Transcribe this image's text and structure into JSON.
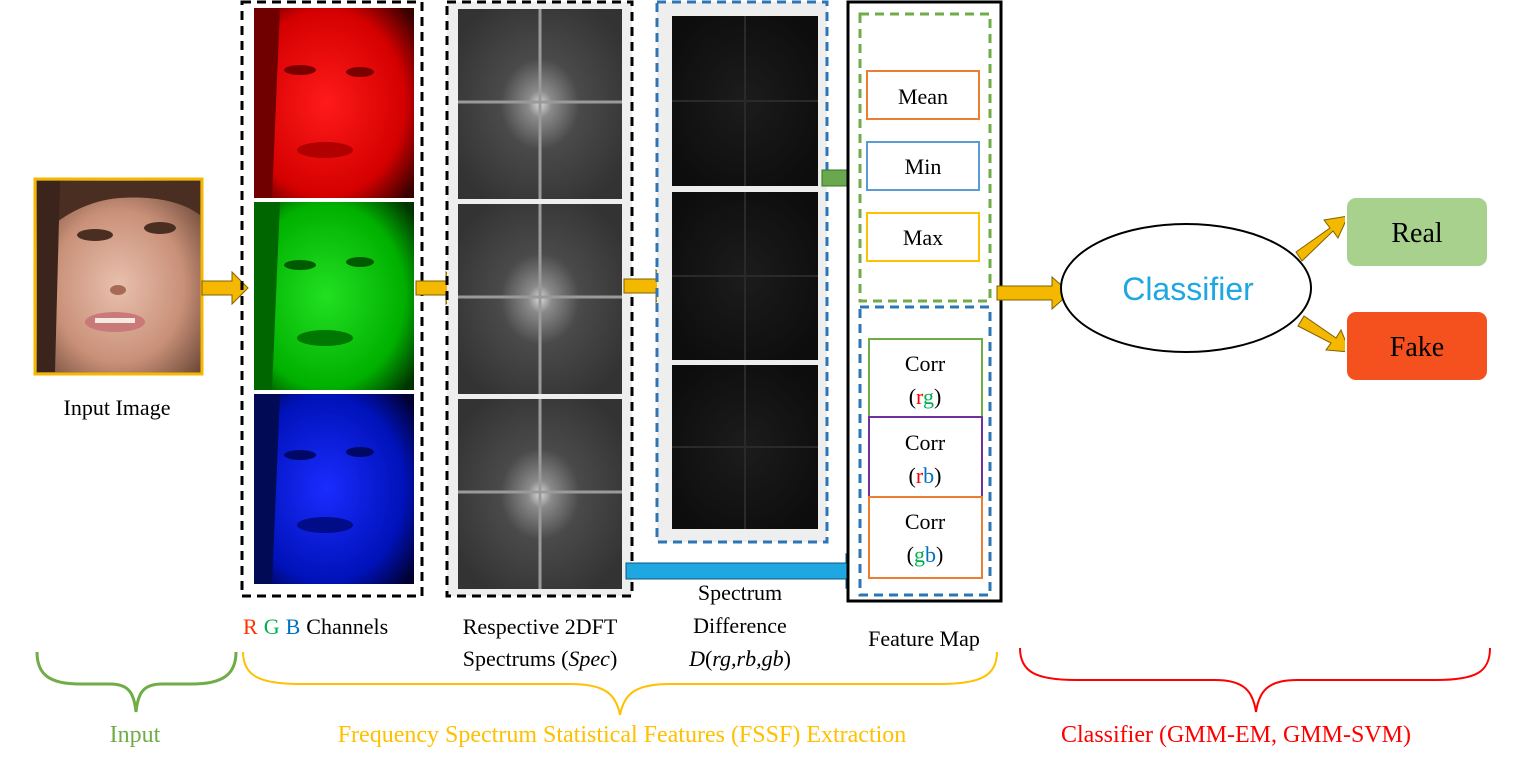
{
  "input": {
    "caption": "Input Image",
    "section_label": "Input"
  },
  "channels": {
    "caption_r": "R",
    "caption_g": "G",
    "caption_b": "B",
    "caption_rest": "Channels"
  },
  "spectrums": {
    "caption_line1": "Respective 2DFT",
    "caption_line2_a": "Spectrums (",
    "caption_line2_b": "Spec",
    "caption_line2_c": ")"
  },
  "difference": {
    "caption_line1": "Spectrum",
    "caption_line2": "Difference",
    "caption_line3_a": "D",
    "caption_line3_b": "(",
    "caption_line3_c": "rg,rb,gb",
    "caption_line3_d": ")"
  },
  "feature_map": {
    "caption": "Feature Map",
    "stats": [
      "Mean",
      "Min",
      "Max"
    ],
    "corr_label": "Corr",
    "corr_pairs": [
      {
        "open": "(",
        "a": "r",
        "b": "g",
        "close": ")"
      },
      {
        "open": "(",
        "a": "r",
        "b": "b",
        "close": ")"
      },
      {
        "open": "(",
        "a": "g",
        "b": "b",
        "close": ")"
      }
    ]
  },
  "classifier": {
    "label": "Classifier",
    "out_real": "Real",
    "out_fake": "Fake"
  },
  "sections": {
    "input": "Input",
    "extraction": "Frequency Spectrum Statistical Features (FSSF) Extraction",
    "classifier": "Classifier (GMM-EM, GMM-SVM)"
  },
  "colors": {
    "arrow_orange": "#F5B800",
    "arrow_green": "#6AA84F",
    "arrow_blue": "#1EA7E1",
    "input_border": "#F5B800",
    "dash_black": "#000000",
    "dash_blue": "#2E75B6",
    "dash_green": "#70AD47",
    "mean_border": "#ED7D31",
    "min_border": "#5B9BD5",
    "max_border": "#FFC000",
    "corr_rg_border": "#70AD47",
    "corr_rb_border": "#7030A0",
    "corr_gb_border": "#ED7D31",
    "red_text": "#FF0000",
    "green_text": "#00B050",
    "blue_text": "#0070C0",
    "classifier_text": "#1EA7E1",
    "real_fill": "#A9D18E",
    "fake_fill": "#F4511E",
    "section_green": "#70AD47",
    "section_yellow": "#FFC000",
    "section_red": "#FF0000",
    "face_red": "#E00000",
    "face_green": "#00C000",
    "face_blue": "#0010C8"
  }
}
